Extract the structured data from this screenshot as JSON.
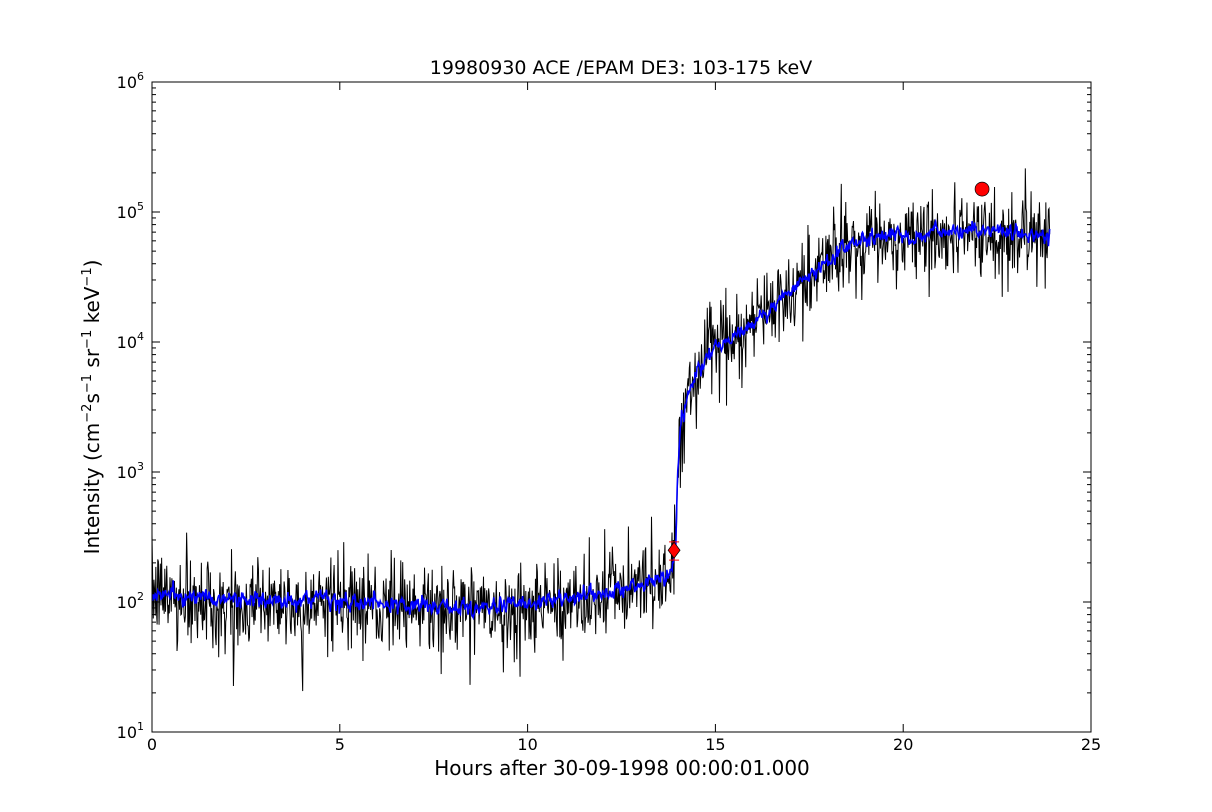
{
  "chart_data": {
    "type": "line",
    "title": "19980930 ACE /EPAM DE3: 103-175 keV",
    "xlabel": "Hours after 30-09-1998 00:00:01.000",
    "ylabel": {
      "prefix": "Intensity (cm",
      "sup1": "−2",
      "mid1": "s",
      "sup2": "−1",
      "mid2": " sr",
      "sup3": "−1",
      "mid3": " keV",
      "sup4": "−1",
      "suffix": ")"
    },
    "xlim": [
      0,
      25
    ],
    "ylim": [
      10,
      1000000
    ],
    "yscale": "log",
    "xticks": [
      "0",
      "5",
      "10",
      "15",
      "20",
      "25"
    ],
    "yticks": [
      {
        "base": "10",
        "exp": "1"
      },
      {
        "base": "10",
        "exp": "2"
      },
      {
        "base": "10",
        "exp": "3"
      },
      {
        "base": "10",
        "exp": "4"
      },
      {
        "base": "10",
        "exp": "5"
      },
      {
        "base": "10",
        "exp": "6"
      }
    ],
    "series": [
      {
        "color": "#000000",
        "profile_x": [
          0,
          2,
          5,
          8,
          10,
          12,
          13.5,
          13.85,
          13.95,
          14.0,
          14.1,
          14.3,
          14.6,
          15.0,
          15.5,
          16.0,
          16.5,
          17.0,
          17.5,
          18.0,
          18.5,
          19.0,
          20.0,
          21.0,
          22.0,
          22.8,
          23.5,
          23.9
        ],
        "profile_y": [
          115,
          105,
          100,
          90,
          95,
          115,
          150,
          170,
          300,
          1200,
          2500,
          4500,
          6500,
          9000,
          11000,
          14000,
          19000,
          24000,
          32000,
          42000,
          55000,
          62000,
          65000,
          70000,
          72000,
          70000,
          65000,
          65000
        ],
        "noise": 0.55
      },
      {
        "color": "#0000ff",
        "profile_x": [
          0,
          2,
          5,
          8,
          10,
          12,
          13.5,
          13.85,
          13.95,
          14.0,
          14.1,
          14.3,
          14.6,
          15.0,
          15.5,
          16.0,
          16.5,
          17.0,
          17.5,
          18.0,
          18.5,
          19.0,
          20.0,
          21.0,
          22.0,
          22.8,
          23.5,
          23.9
        ],
        "profile_y": [
          115,
          105,
          100,
          90,
          95,
          115,
          150,
          170,
          300,
          1200,
          2500,
          4500,
          6500,
          9000,
          11000,
          14000,
          19000,
          24000,
          32000,
          42000,
          55000,
          62000,
          65000,
          70000,
          72000,
          70000,
          65000,
          65000
        ],
        "noise": 0.18
      }
    ],
    "markers": [
      {
        "shape": "diamond",
        "x": 13.9,
        "y": 250,
        "color": "#ff0000",
        "errorbar": [
          210,
          290
        ]
      },
      {
        "shape": "circle",
        "x": 22.1,
        "y": 150000,
        "color": "#ff0000"
      }
    ],
    "grid": false,
    "legend": "none"
  }
}
